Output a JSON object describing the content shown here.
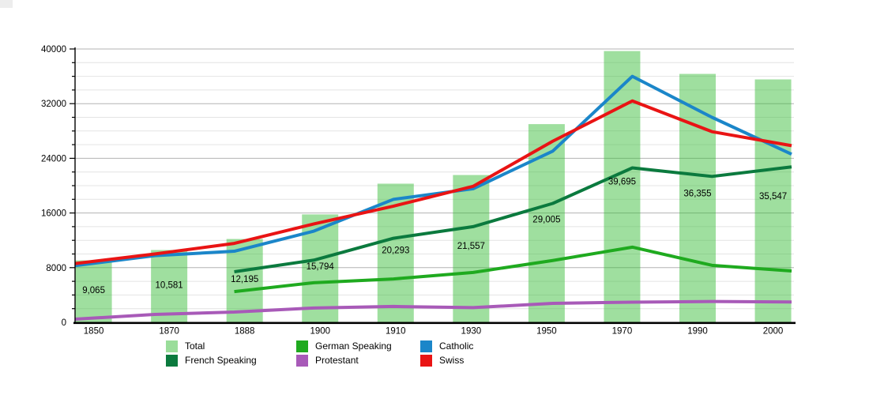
{
  "page": {
    "background": "#ffffff"
  },
  "chart_data": {
    "type": "bar",
    "subtype": "bar+line combo (population history)",
    "title": "",
    "xlabel": "",
    "ylabel": "",
    "categories": [
      "1850",
      "1870",
      "1888",
      "1900",
      "1910",
      "1930",
      "1950",
      "1970",
      "1990",
      "2000"
    ],
    "ylim": [
      0,
      40000
    ],
    "y_major_step": 8000,
    "y_minor_step": 2000,
    "y_tick_labels": [
      "0",
      "8000",
      "16000",
      "24000",
      "32000",
      "40000"
    ],
    "grid": true,
    "legend_position": "bottom",
    "bar_series": {
      "name": "Total",
      "color": "#9ADD9A",
      "fill": "rgba(51,187,51,0.47)",
      "values": [
        9065,
        10581,
        12195,
        15794,
        20293,
        21557,
        29005,
        39695,
        36355,
        35547
      ],
      "value_labels": [
        "9,065",
        "10,581",
        "12,195",
        "15,794",
        "20,293",
        "21,557",
        "29,005",
        "39,695",
        "36,355",
        "35,547"
      ]
    },
    "line_series": [
      {
        "name": "Catholic",
        "color": "#1B86C9",
        "values": [
          8300,
          9750,
          10400,
          13350,
          18000,
          19550,
          25050,
          36000,
          30000,
          24600
        ]
      },
      {
        "name": "Swiss",
        "color": "#E91414",
        "values": [
          8600,
          10000,
          11550,
          14400,
          17000,
          19900,
          26500,
          32400,
          27900,
          25850
        ]
      },
      {
        "name": "French Speaking",
        "color": "#0B7A3E",
        "values": [
          null,
          null,
          7400,
          9100,
          12300,
          14000,
          17400,
          22600,
          21350,
          22750
        ]
      },
      {
        "name": "German Speaking",
        "color": "#1FAA1F",
        "values": [
          null,
          null,
          4500,
          5800,
          6350,
          7300,
          9050,
          11000,
          8340,
          7520
        ]
      },
      {
        "name": "Protestant",
        "color": "#A85AB8",
        "values": [
          460,
          1160,
          1500,
          2100,
          2320,
          2150,
          2780,
          2950,
          3050,
          2970
        ]
      }
    ]
  },
  "legend": {
    "items": [
      {
        "label": "Total",
        "color": "#9ADD9A"
      },
      {
        "label": "German Speaking",
        "color": "#1FAA1F"
      },
      {
        "label": "Catholic",
        "color": "#1B86C9"
      },
      {
        "label": "French Speaking",
        "color": "#0B7A3E"
      },
      {
        "label": "Protestant",
        "color": "#A85AB8"
      },
      {
        "label": "Swiss",
        "color": "#E91414"
      }
    ]
  }
}
